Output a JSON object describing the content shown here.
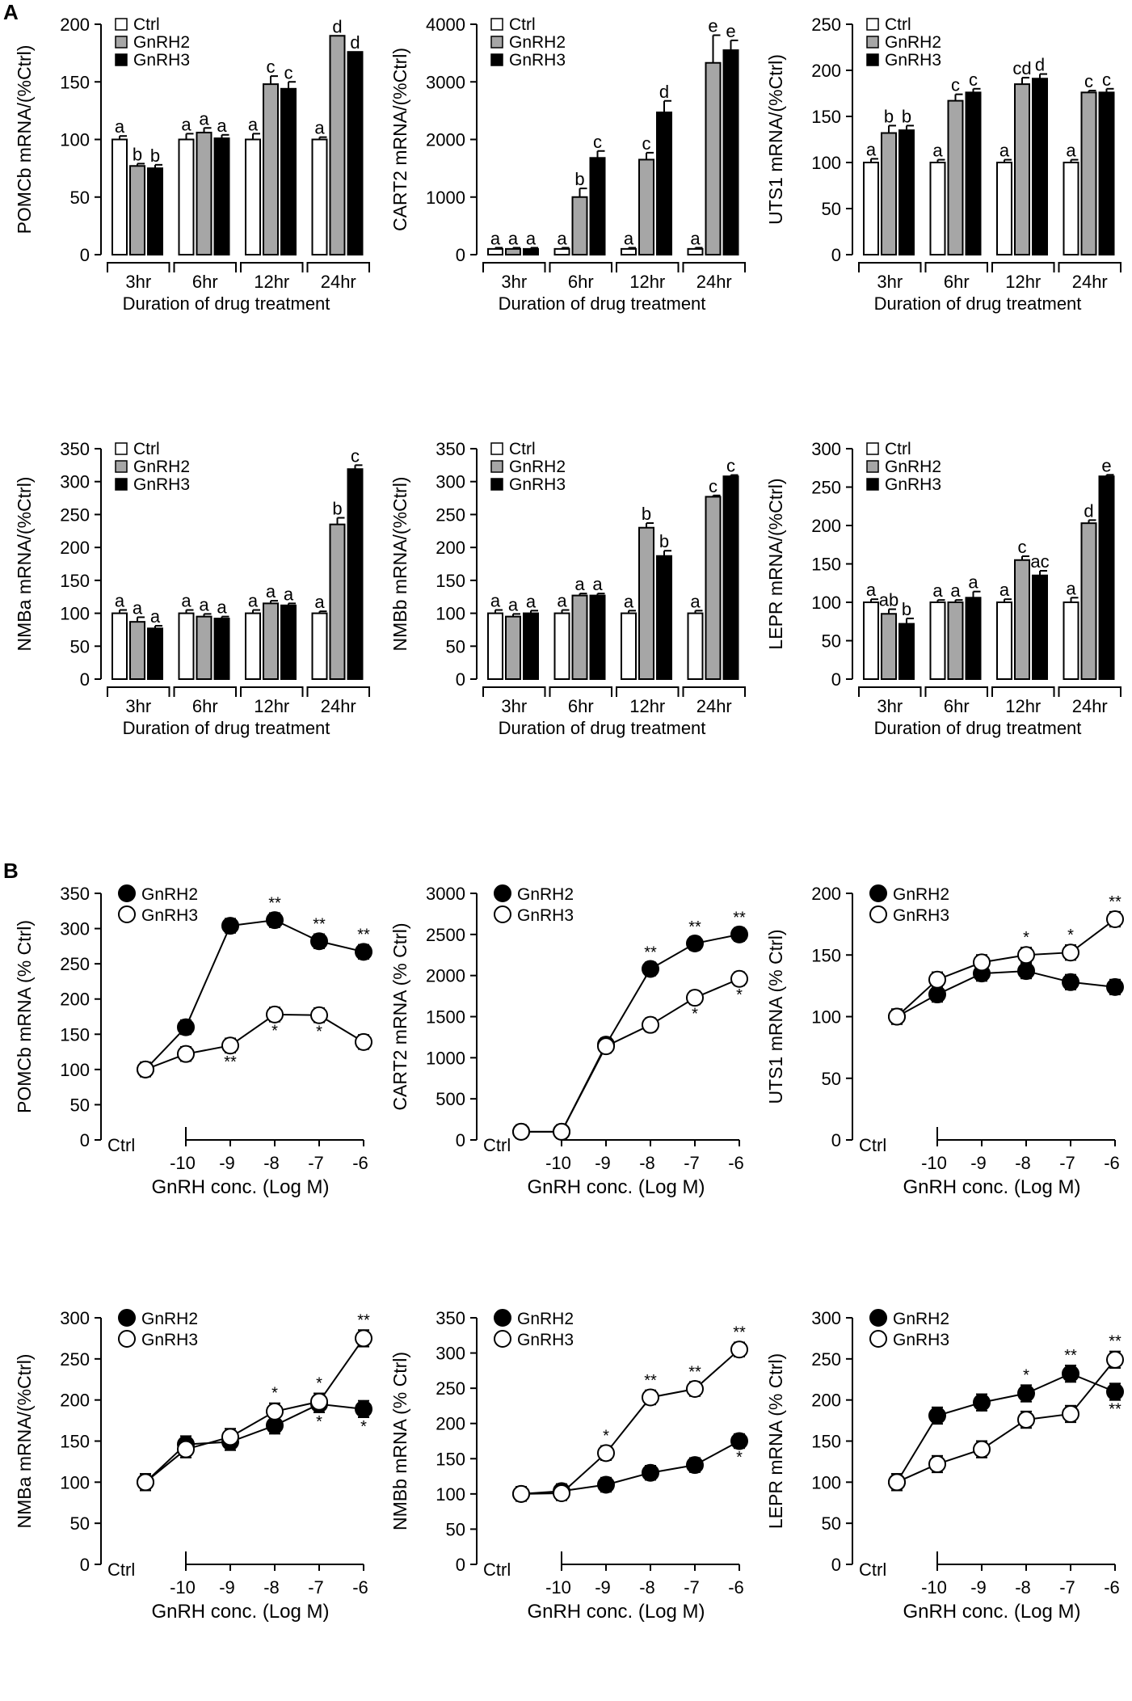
{
  "panels": {
    "a": "A",
    "b": "B"
  },
  "legend_symbols": {
    "open": "white",
    "gray": "#a6a6a6",
    "black": "#000000"
  },
  "chart_data": [
    {
      "type": "bar",
      "panel": "A",
      "title": "",
      "ylabel": "POMCb mRNA/(%Ctrl)",
      "xlabel": "Duration of drug treatment",
      "ylim": [
        0,
        200
      ],
      "yticks": [
        0,
        50,
        100,
        150,
        200
      ],
      "categories": [
        "3hr",
        "6hr",
        "12hr",
        "24hr"
      ],
      "legend": [
        "Ctrl",
        "GnRH2",
        "GnRH3"
      ],
      "series": [
        {
          "name": "Ctrl",
          "values": [
            100,
            100,
            100,
            100
          ],
          "errors": [
            3,
            5,
            5,
            2
          ],
          "letters": [
            "a",
            "a",
            "a",
            "a"
          ]
        },
        {
          "name": "GnRH2",
          "values": [
            77,
            106,
            148,
            190
          ],
          "errors": [
            2,
            4,
            7,
            0
          ],
          "letters": [
            "b",
            "a",
            "c",
            "d"
          ]
        },
        {
          "name": "GnRH3",
          "values": [
            75,
            101,
            144,
            176
          ],
          "errors": [
            3,
            3,
            6,
            0
          ],
          "letters": [
            "b",
            "a",
            "c",
            "d"
          ]
        }
      ]
    },
    {
      "type": "bar",
      "panel": "A",
      "title": "",
      "ylabel": "CART2 mRNA/(%Ctrl)",
      "xlabel": "Duration of drug treatment",
      "ylim": [
        0,
        4000
      ],
      "yticks": [
        0,
        1000,
        2000,
        3000,
        4000
      ],
      "categories": [
        "3hr",
        "6hr",
        "12hr",
        "24hr"
      ],
      "legend": [
        "Ctrl",
        "GnRH2",
        "GnRH3"
      ],
      "series": [
        {
          "name": "Ctrl",
          "values": [
            100,
            100,
            100,
            100
          ],
          "errors": [
            20,
            20,
            20,
            20
          ],
          "letters": [
            "a",
            "a",
            "a",
            "a"
          ]
        },
        {
          "name": "GnRH2",
          "values": [
            100,
            1000,
            1650,
            3330
          ],
          "errors": [
            20,
            150,
            120,
            480
          ],
          "letters": [
            "a",
            "b",
            "c",
            "e"
          ]
        },
        {
          "name": "GnRH3",
          "values": [
            100,
            1680,
            2470,
            3550
          ],
          "errors": [
            20,
            120,
            200,
            170
          ],
          "letters": [
            "a",
            "c",
            "d",
            "e"
          ]
        }
      ]
    },
    {
      "type": "bar",
      "panel": "A",
      "title": "",
      "ylabel": "UTS1 mRNA/(%Ctrl)",
      "xlabel": "Duration of drug treatment",
      "ylim": [
        0,
        250
      ],
      "yticks": [
        0,
        50,
        100,
        150,
        200,
        250
      ],
      "categories": [
        "3hr",
        "6hr",
        "12hr",
        "24hr"
      ],
      "legend": [
        "Ctrl",
        "GnRH2",
        "GnRH3"
      ],
      "series": [
        {
          "name": "Ctrl",
          "values": [
            100,
            100,
            100,
            100
          ],
          "errors": [
            4,
            3,
            3,
            3
          ],
          "letters": [
            "a",
            "a",
            "a",
            "a"
          ]
        },
        {
          "name": "GnRH2",
          "values": [
            132,
            167,
            185,
            176
          ],
          "errors": [
            8,
            7,
            7,
            2
          ],
          "letters": [
            "b",
            "c",
            "cd",
            "c"
          ]
        },
        {
          "name": "GnRH3",
          "values": [
            135,
            176,
            191,
            176
          ],
          "errors": [
            5,
            4,
            5,
            4
          ],
          "letters": [
            "b",
            "c",
            "d",
            "c"
          ]
        }
      ]
    },
    {
      "type": "bar",
      "panel": "A",
      "title": "",
      "ylabel": "NMBa mRNA/(%Ctrl)",
      "xlabel": "Duration of drug treatment",
      "ylim": [
        0,
        350
      ],
      "yticks": [
        0,
        50,
        100,
        150,
        200,
        250,
        300,
        350
      ],
      "categories": [
        "3hr",
        "6hr",
        "12hr",
        "24hr"
      ],
      "legend": [
        "Ctrl",
        "GnRH2",
        "GnRH3"
      ],
      "series": [
        {
          "name": "Ctrl",
          "values": [
            100,
            100,
            100,
            100
          ],
          "errors": [
            5,
            5,
            5,
            3
          ],
          "letters": [
            "a",
            "a",
            "a",
            "a"
          ]
        },
        {
          "name": "GnRH2",
          "values": [
            87,
            95,
            115,
            235
          ],
          "errors": [
            7,
            4,
            4,
            10
          ],
          "letters": [
            "a",
            "a",
            "a",
            "b"
          ]
        },
        {
          "name": "GnRH3",
          "values": [
            77,
            92,
            112,
            319
          ],
          "errors": [
            4,
            3,
            3,
            6
          ],
          "letters": [
            "a",
            "a",
            "a",
            "c"
          ]
        }
      ]
    },
    {
      "type": "bar",
      "panel": "A",
      "title": "",
      "ylabel": "NMBb mRNA/(%Ctrl)",
      "xlabel": "Duration of drug treatment",
      "ylim": [
        0,
        350
      ],
      "yticks": [
        0,
        50,
        100,
        150,
        200,
        250,
        300,
        350
      ],
      "categories": [
        "3hr",
        "6hr",
        "12hr",
        "24hr"
      ],
      "legend": [
        "Ctrl",
        "GnRH2",
        "GnRH3"
      ],
      "series": [
        {
          "name": "Ctrl",
          "values": [
            100,
            100,
            100,
            100
          ],
          "errors": [
            5,
            5,
            4,
            4
          ],
          "letters": [
            "a",
            "a",
            "a",
            "a"
          ]
        },
        {
          "name": "GnRH2",
          "values": [
            95,
            127,
            230,
            277
          ],
          "errors": [
            4,
            3,
            7,
            2
          ],
          "letters": [
            "a",
            "a",
            "b",
            "c"
          ]
        },
        {
          "name": "GnRH3",
          "values": [
            100,
            127,
            187,
            308
          ],
          "errors": [
            4,
            3,
            8,
            2
          ],
          "letters": [
            "a",
            "a",
            "b",
            "c"
          ]
        }
      ]
    },
    {
      "type": "bar",
      "panel": "A",
      "title": "",
      "ylabel": "LEPR mRNA/(%Ctrl)",
      "xlabel": "Duration of drug treatment",
      "ylim": [
        0,
        300
      ],
      "yticks": [
        0,
        50,
        100,
        150,
        200,
        250,
        300
      ],
      "categories": [
        "3hr",
        "6hr",
        "12hr",
        "24hr"
      ],
      "legend": [
        "Ctrl",
        "GnRH2",
        "GnRH3"
      ],
      "series": [
        {
          "name": "Ctrl",
          "values": [
            100,
            100,
            100,
            100
          ],
          "errors": [
            4,
            3,
            4,
            6
          ],
          "letters": [
            "a",
            "a",
            "a",
            "a"
          ]
        },
        {
          "name": "GnRH2",
          "values": [
            85,
            100,
            155,
            203
          ],
          "errors": [
            6,
            3,
            5,
            4
          ],
          "letters": [
            "ab",
            "a",
            "c",
            "d"
          ]
        },
        {
          "name": "GnRH3",
          "values": [
            72,
            106,
            135,
            264
          ],
          "errors": [
            7,
            8,
            6,
            2
          ],
          "letters": [
            "b",
            "a",
            "ac",
            "e"
          ]
        }
      ]
    },
    {
      "type": "line",
      "panel": "B",
      "title": "",
      "ylabel": "POMCb mRNA (% Ctrl)",
      "xlabel": "GnRH conc. (Log M)",
      "ylim": [
        0,
        350
      ],
      "yticks": [
        0,
        50,
        100,
        150,
        200,
        250,
        300,
        350
      ],
      "x": [
        "Ctrl",
        "-10",
        "-9",
        "-8",
        "-7",
        "-6"
      ],
      "x_ctrl_label": "Ctrl",
      "legend": [
        "GnRH2",
        "GnRH3"
      ],
      "series": [
        {
          "name": "GnRH2",
          "marker": "filled",
          "values": [
            100,
            160,
            304,
            312,
            282,
            267
          ],
          "errors": [
            10,
            10,
            10,
            10,
            10,
            10
          ],
          "stars": [
            "",
            "",
            "",
            "**",
            "**",
            "**"
          ]
        },
        {
          "name": "GnRH3",
          "marker": "open",
          "values": [
            100,
            122,
            134,
            178,
            177,
            139
          ],
          "errors": [
            10,
            10,
            10,
            10,
            10,
            10
          ],
          "stars": [
            "",
            "",
            "**",
            "*",
            "*",
            ""
          ]
        }
      ]
    },
    {
      "type": "line",
      "panel": "B",
      "title": "",
      "ylabel": "CART2 mRNA (% Ctrl)",
      "xlabel": "GnRH conc. (Log M)",
      "ylim": [
        0,
        3000
      ],
      "yticks": [
        0,
        500,
        1000,
        1500,
        2000,
        2500,
        3000
      ],
      "x": [
        "Ctrl",
        "-10",
        "-9",
        "-8",
        "-7",
        "-6"
      ],
      "x_ctrl_label": "Ctrl",
      "legend": [
        "GnRH2",
        "GnRH3"
      ],
      "series": [
        {
          "name": "GnRH2",
          "marker": "filled",
          "values": [
            100,
            100,
            1160,
            2080,
            2390,
            2500
          ],
          "errors": [
            80,
            80,
            80,
            80,
            80,
            80
          ],
          "stars": [
            "",
            "",
            "",
            "**",
            "**",
            "**"
          ]
        },
        {
          "name": "GnRH3",
          "marker": "open",
          "values": [
            100,
            100,
            1140,
            1400,
            1730,
            1960
          ],
          "errors": [
            80,
            80,
            80,
            80,
            80,
            80
          ],
          "stars": [
            "",
            "",
            "",
            "",
            "*",
            "*"
          ]
        }
      ]
    },
    {
      "type": "line",
      "panel": "B",
      "title": "",
      "ylabel": "UTS1 mRNA (% Ctrl)",
      "xlabel": "GnRH conc. (Log M)",
      "ylim": [
        0,
        200
      ],
      "yticks": [
        0,
        50,
        100,
        150,
        200
      ],
      "x": [
        "Ctrl",
        "-10",
        "-9",
        "-8",
        "-7",
        "-6"
      ],
      "x_ctrl_label": "Ctrl",
      "legend": [
        "GnRH2",
        "GnRH3"
      ],
      "series": [
        {
          "name": "GnRH2",
          "marker": "filled",
          "values": [
            100,
            118,
            135,
            137,
            128,
            124
          ],
          "errors": [
            6,
            6,
            6,
            6,
            6,
            6
          ],
          "stars": [
            "",
            "",
            "",
            "",
            "",
            ""
          ]
        },
        {
          "name": "GnRH3",
          "marker": "open",
          "values": [
            100,
            130,
            144,
            150,
            152,
            179
          ],
          "errors": [
            6,
            6,
            6,
            6,
            6,
            6
          ],
          "stars": [
            "",
            "",
            "",
            "*",
            "*",
            "**"
          ]
        }
      ]
    },
    {
      "type": "line",
      "panel": "B",
      "title": "",
      "ylabel": "NMBa mRNA/(%Ctrl)",
      "xlabel": "GnRH conc. (Log M)",
      "ylim": [
        0,
        300
      ],
      "yticks": [
        0,
        50,
        100,
        150,
        200,
        250,
        300
      ],
      "x": [
        "Ctrl",
        "-10",
        "-9",
        "-8",
        "-7",
        "-6"
      ],
      "x_ctrl_label": "Ctrl",
      "legend": [
        "GnRH2",
        "GnRH3"
      ],
      "series": [
        {
          "name": "GnRH2",
          "marker": "filled",
          "values": [
            100,
            146,
            149,
            169,
            195,
            189
          ],
          "errors": [
            10,
            10,
            10,
            10,
            10,
            10
          ],
          "stars": [
            "",
            "",
            "",
            "",
            "*",
            "*"
          ]
        },
        {
          "name": "GnRH3",
          "marker": "open",
          "values": [
            100,
            140,
            155,
            186,
            198,
            275
          ],
          "errors": [
            10,
            10,
            10,
            10,
            10,
            10
          ],
          "stars": [
            "",
            "",
            "",
            "*",
            "*",
            "**"
          ]
        }
      ]
    },
    {
      "type": "line",
      "panel": "B",
      "title": "",
      "ylabel": "NMBb mRNA (% Ctrl)",
      "xlabel": "GnRH conc. (Log M)",
      "ylim": [
        0,
        350
      ],
      "yticks": [
        0,
        50,
        100,
        150,
        200,
        250,
        300,
        350
      ],
      "x": [
        "Ctrl",
        "-10",
        "-9",
        "-8",
        "-7",
        "-6"
      ],
      "x_ctrl_label": "Ctrl",
      "legend": [
        "GnRH2",
        "GnRH3"
      ],
      "series": [
        {
          "name": "GnRH2",
          "marker": "filled",
          "values": [
            100,
            104,
            113,
            130,
            141,
            175
          ],
          "errors": [
            10,
            10,
            10,
            10,
            10,
            10
          ],
          "stars": [
            "",
            "",
            "",
            "",
            "",
            "*"
          ]
        },
        {
          "name": "GnRH3",
          "marker": "open",
          "values": [
            100,
            101,
            158,
            237,
            249,
            305
          ],
          "errors": [
            10,
            10,
            10,
            10,
            10,
            10
          ],
          "stars": [
            "",
            "",
            "*",
            "**",
            "**",
            "**"
          ]
        }
      ]
    },
    {
      "type": "line",
      "panel": "B",
      "title": "",
      "ylabel": "LEPR mRNA (% Ctrl)",
      "xlabel": "GnRH conc. (Log M)",
      "ylim": [
        0,
        300
      ],
      "yticks": [
        0,
        50,
        100,
        150,
        200,
        250,
        300
      ],
      "x": [
        "Ctrl",
        "-10",
        "-9",
        "-8",
        "-7",
        "-6"
      ],
      "x_ctrl_label": "Ctrl",
      "legend": [
        "GnRH2",
        "GnRH3"
      ],
      "series": [
        {
          "name": "GnRH2",
          "marker": "filled",
          "values": [
            100,
            181,
            197,
            208,
            232,
            210
          ],
          "errors": [
            10,
            10,
            10,
            10,
            10,
            10
          ],
          "stars": [
            "",
            "",
            "",
            "*",
            "**",
            "**"
          ]
        },
        {
          "name": "GnRH3",
          "marker": "open",
          "values": [
            100,
            122,
            140,
            176,
            183,
            249
          ],
          "errors": [
            10,
            10,
            10,
            10,
            10,
            10
          ],
          "stars": [
            "",
            "",
            "",
            "",
            "",
            "**"
          ]
        }
      ]
    }
  ]
}
